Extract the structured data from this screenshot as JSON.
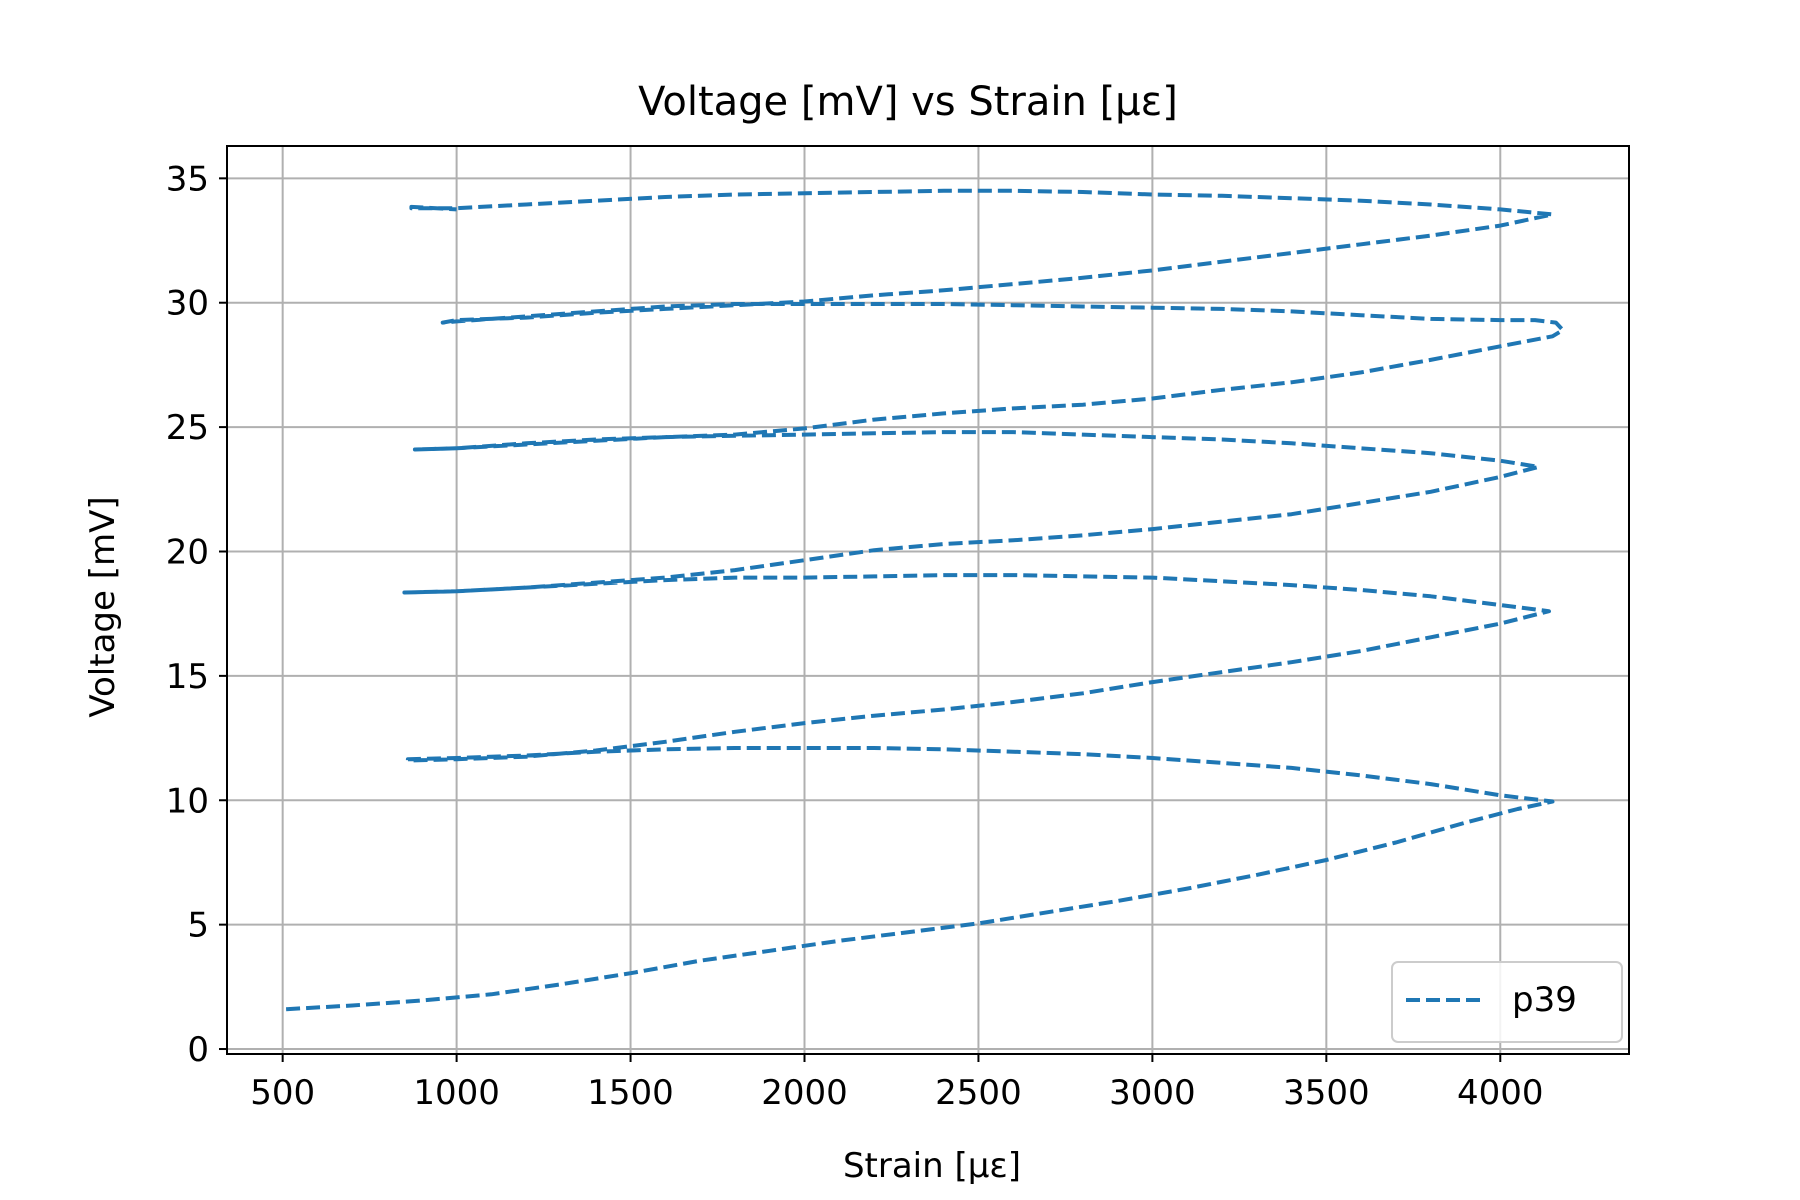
{
  "chart_data": {
    "type": "line",
    "title": "Voltage [mV] vs Strain [με]",
    "xlabel": "Strain [με]",
    "ylabel": "Voltage [mV]",
    "xlim": [
      340,
      4370
    ],
    "ylim": [
      -0.2,
      36.3
    ],
    "xticks": [
      500,
      1000,
      1500,
      2000,
      2500,
      3000,
      3500,
      4000
    ],
    "xtick_labels": [
      "500",
      "1000",
      "1500",
      "2000",
      "2500",
      "3000",
      "3500",
      "4000"
    ],
    "yticks": [
      0,
      5,
      10,
      15,
      20,
      25,
      30,
      35
    ],
    "ytick_labels": [
      "0",
      "5",
      "10",
      "15",
      "20",
      "25",
      "30",
      "35"
    ],
    "grid": true,
    "legend_position": "lower right",
    "series": [
      {
        "name": "p39",
        "color": "#1f77b4",
        "line_style": "dashed",
        "points": [
          [
            510,
            1.6
          ],
          [
            700,
            1.75
          ],
          [
            900,
            1.95
          ],
          [
            1100,
            2.2
          ],
          [
            1300,
            2.6
          ],
          [
            1500,
            3.05
          ],
          [
            1700,
            3.55
          ],
          [
            1900,
            3.95
          ],
          [
            2100,
            4.35
          ],
          [
            2300,
            4.7
          ],
          [
            2500,
            5.05
          ],
          [
            2700,
            5.5
          ],
          [
            2900,
            5.95
          ],
          [
            3100,
            6.45
          ],
          [
            3300,
            7.0
          ],
          [
            3500,
            7.6
          ],
          [
            3700,
            8.3
          ],
          [
            3900,
            9.1
          ],
          [
            4050,
            9.65
          ],
          [
            4150,
            9.95
          ],
          [
            4000,
            10.2
          ],
          [
            3800,
            10.65
          ],
          [
            3600,
            11.0
          ],
          [
            3400,
            11.3
          ],
          [
            3200,
            11.5
          ],
          [
            3000,
            11.7
          ],
          [
            2800,
            11.85
          ],
          [
            2600,
            11.95
          ],
          [
            2400,
            12.05
          ],
          [
            2200,
            12.1
          ],
          [
            2000,
            12.1
          ],
          [
            1800,
            12.1
          ],
          [
            1600,
            12.05
          ],
          [
            1400,
            11.95
          ],
          [
            1200,
            11.8
          ],
          [
            1000,
            11.7
          ],
          [
            860,
            11.65
          ],
          [
            860,
            11.6
          ],
          [
            1000,
            11.65
          ],
          [
            1200,
            11.75
          ],
          [
            1400,
            12.0
          ],
          [
            1600,
            12.35
          ],
          [
            1800,
            12.75
          ],
          [
            2000,
            13.1
          ],
          [
            2200,
            13.4
          ],
          [
            2400,
            13.65
          ],
          [
            2600,
            13.95
          ],
          [
            2800,
            14.3
          ],
          [
            3000,
            14.75
          ],
          [
            3200,
            15.15
          ],
          [
            3400,
            15.55
          ],
          [
            3600,
            16.0
          ],
          [
            3800,
            16.55
          ],
          [
            4000,
            17.1
          ],
          [
            4140,
            17.6
          ],
          [
            4000,
            17.85
          ],
          [
            3800,
            18.2
          ],
          [
            3600,
            18.45
          ],
          [
            3400,
            18.65
          ],
          [
            3200,
            18.8
          ],
          [
            3000,
            18.95
          ],
          [
            2800,
            19.0
          ],
          [
            2600,
            19.05
          ],
          [
            2400,
            19.05
          ],
          [
            2200,
            19.0
          ],
          [
            2000,
            18.95
          ],
          [
            1800,
            18.95
          ],
          [
            1600,
            18.85
          ],
          [
            1400,
            18.7
          ],
          [
            1200,
            18.55
          ],
          [
            1000,
            18.4
          ],
          [
            850,
            18.35
          ],
          [
            850,
            18.35
          ],
          [
            1000,
            18.4
          ],
          [
            1200,
            18.55
          ],
          [
            1400,
            18.75
          ],
          [
            1600,
            18.95
          ],
          [
            1800,
            19.25
          ],
          [
            2000,
            19.65
          ],
          [
            2200,
            20.05
          ],
          [
            2400,
            20.3
          ],
          [
            2600,
            20.45
          ],
          [
            2800,
            20.65
          ],
          [
            3000,
            20.9
          ],
          [
            3200,
            21.2
          ],
          [
            3400,
            21.5
          ],
          [
            3600,
            21.95
          ],
          [
            3800,
            22.4
          ],
          [
            4000,
            23.0
          ],
          [
            4110,
            23.4
          ],
          [
            4000,
            23.65
          ],
          [
            3800,
            23.95
          ],
          [
            3600,
            24.15
          ],
          [
            3400,
            24.35
          ],
          [
            3200,
            24.5
          ],
          [
            3000,
            24.6
          ],
          [
            2800,
            24.7
          ],
          [
            2600,
            24.8
          ],
          [
            2400,
            24.8
          ],
          [
            2200,
            24.75
          ],
          [
            2000,
            24.7
          ],
          [
            1800,
            24.65
          ],
          [
            1600,
            24.6
          ],
          [
            1400,
            24.5
          ],
          [
            1200,
            24.35
          ],
          [
            1000,
            24.15
          ],
          [
            880,
            24.1
          ],
          [
            880,
            24.1
          ],
          [
            1000,
            24.15
          ],
          [
            1200,
            24.3
          ],
          [
            1400,
            24.45
          ],
          [
            1600,
            24.6
          ],
          [
            1800,
            24.7
          ],
          [
            2000,
            24.95
          ],
          [
            2200,
            25.3
          ],
          [
            2400,
            25.55
          ],
          [
            2600,
            25.75
          ],
          [
            2800,
            25.9
          ],
          [
            3000,
            26.15
          ],
          [
            3200,
            26.5
          ],
          [
            3400,
            26.8
          ],
          [
            3600,
            27.2
          ],
          [
            3800,
            27.7
          ],
          [
            4000,
            28.25
          ],
          [
            4150,
            28.65
          ],
          [
            4180,
            28.9
          ],
          [
            4160,
            29.2
          ],
          [
            4100,
            29.3
          ],
          [
            4000,
            29.3
          ],
          [
            3800,
            29.35
          ],
          [
            3600,
            29.5
          ],
          [
            3400,
            29.65
          ],
          [
            3200,
            29.75
          ],
          [
            3000,
            29.8
          ],
          [
            2800,
            29.85
          ],
          [
            2600,
            29.9
          ],
          [
            2400,
            29.95
          ],
          [
            2200,
            29.95
          ],
          [
            2000,
            29.95
          ],
          [
            1800,
            29.95
          ],
          [
            1600,
            29.85
          ],
          [
            1400,
            29.65
          ],
          [
            1200,
            29.45
          ],
          [
            1000,
            29.25
          ],
          [
            960,
            29.2
          ],
          [
            960,
            29.2
          ],
          [
            1000,
            29.3
          ],
          [
            1200,
            29.4
          ],
          [
            1400,
            29.6
          ],
          [
            1600,
            29.75
          ],
          [
            1800,
            29.9
          ],
          [
            2000,
            30.05
          ],
          [
            2200,
            30.3
          ],
          [
            2400,
            30.5
          ],
          [
            2600,
            30.75
          ],
          [
            2800,
            31.0
          ],
          [
            3000,
            31.3
          ],
          [
            3200,
            31.65
          ],
          [
            3400,
            32.0
          ],
          [
            3600,
            32.35
          ],
          [
            3800,
            32.7
          ],
          [
            4000,
            33.1
          ],
          [
            4150,
            33.55
          ],
          [
            4000,
            33.75
          ],
          [
            3800,
            33.95
          ],
          [
            3600,
            34.1
          ],
          [
            3400,
            34.2
          ],
          [
            3200,
            34.3
          ],
          [
            3000,
            34.35
          ],
          [
            2800,
            34.45
          ],
          [
            2600,
            34.5
          ],
          [
            2400,
            34.5
          ],
          [
            2200,
            34.45
          ],
          [
            2000,
            34.4
          ],
          [
            1800,
            34.35
          ],
          [
            1600,
            34.25
          ],
          [
            1400,
            34.1
          ],
          [
            1200,
            33.95
          ],
          [
            1000,
            33.8
          ],
          [
            870,
            33.8
          ],
          [
            870,
            33.85
          ],
          [
            1000,
            33.75
          ]
        ]
      }
    ]
  }
}
